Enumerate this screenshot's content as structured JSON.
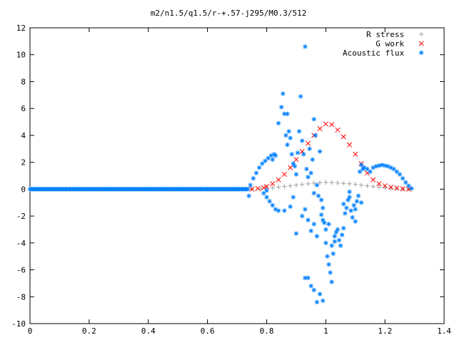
{
  "chart_data": {
    "type": "scatter",
    "title": "m2/n1.5/q1.5/r-+.57-j295/M0.3/512",
    "xlabel": "",
    "ylabel": "",
    "xlim": [
      0,
      1.4
    ],
    "ylim": [
      -10,
      12
    ],
    "x_ticks": [
      "0",
      "0.2",
      "0.4",
      "0.6",
      "0.8",
      "1",
      "1.2",
      "1.4"
    ],
    "y_ticks": [
      "-10",
      "-8",
      "-6",
      "-4",
      "-2",
      "0",
      "2",
      "4",
      "6",
      "8",
      "10",
      "12"
    ],
    "grid": false,
    "legend_position": "top-right",
    "series": [
      {
        "name": "R stress",
        "marker": "+",
        "color": "#a0a0a0",
        "points": [
          [
            0.75,
            0.0
          ],
          [
            0.78,
            0.02
          ],
          [
            0.8,
            0.05
          ],
          [
            0.82,
            0.1
          ],
          [
            0.84,
            0.15
          ],
          [
            0.86,
            0.2
          ],
          [
            0.88,
            0.25
          ],
          [
            0.9,
            0.3
          ],
          [
            0.92,
            0.35
          ],
          [
            0.94,
            0.4
          ],
          [
            0.96,
            0.45
          ],
          [
            0.98,
            0.48
          ],
          [
            1.0,
            0.5
          ],
          [
            1.02,
            0.49
          ],
          [
            1.04,
            0.46
          ],
          [
            1.06,
            0.43
          ],
          [
            1.08,
            0.4
          ],
          [
            1.1,
            0.36
          ],
          [
            1.12,
            0.3
          ],
          [
            1.14,
            0.25
          ],
          [
            1.16,
            0.2
          ],
          [
            1.18,
            0.15
          ],
          [
            1.2,
            0.1
          ],
          [
            1.22,
            0.06
          ],
          [
            1.24,
            0.03
          ],
          [
            1.26,
            0.01
          ],
          [
            1.28,
            0.0
          ]
        ]
      },
      {
        "name": "G work",
        "marker": "x",
        "color": "#ff0000",
        "points": [
          [
            0.75,
            0.0
          ],
          [
            0.77,
            0.05
          ],
          [
            0.79,
            0.1
          ],
          [
            0.8,
            0.2
          ],
          [
            0.82,
            0.4
          ],
          [
            0.84,
            0.7
          ],
          [
            0.86,
            1.1
          ],
          [
            0.88,
            1.6
          ],
          [
            0.9,
            2.2
          ],
          [
            0.92,
            2.8
          ],
          [
            0.94,
            3.4
          ],
          [
            0.96,
            4.0
          ],
          [
            0.98,
            4.5
          ],
          [
            1.0,
            4.85
          ],
          [
            1.02,
            4.8
          ],
          [
            1.04,
            4.4
          ],
          [
            1.06,
            3.9
          ],
          [
            1.08,
            3.3
          ],
          [
            1.1,
            2.6
          ],
          [
            1.12,
            1.9
          ],
          [
            1.14,
            1.2
          ],
          [
            1.16,
            0.7
          ],
          [
            1.18,
            0.4
          ],
          [
            1.2,
            0.25
          ],
          [
            1.22,
            0.15
          ],
          [
            1.24,
            0.08
          ],
          [
            1.26,
            0.03
          ],
          [
            1.28,
            0.0
          ]
        ]
      },
      {
        "name": "Acoustic flux",
        "marker": "*",
        "color": "#0080ff",
        "baseline_x": [
          0.0,
          0.74
        ],
        "baseline_y": 0.0,
        "points": [
          [
            0.74,
            -0.5
          ],
          [
            0.745,
            0.3
          ],
          [
            0.755,
            0.8
          ],
          [
            0.765,
            1.2
          ],
          [
            0.775,
            1.6
          ],
          [
            0.785,
            1.9
          ],
          [
            0.795,
            2.1
          ],
          [
            0.805,
            2.3
          ],
          [
            0.815,
            2.5
          ],
          [
            0.825,
            2.6
          ],
          [
            0.79,
            -0.3
          ],
          [
            0.8,
            -0.6
          ],
          [
            0.81,
            -0.9
          ],
          [
            0.82,
            -1.2
          ],
          [
            0.83,
            -1.5
          ],
          [
            0.84,
            -1.6
          ],
          [
            0.8,
            -0.1
          ],
          [
            0.84,
            4.9
          ],
          [
            0.85,
            6.1
          ],
          [
            0.855,
            7.1
          ],
          [
            0.86,
            5.6
          ],
          [
            0.865,
            4.0
          ],
          [
            0.87,
            5.6
          ],
          [
            0.875,
            4.3
          ],
          [
            0.88,
            3.8
          ],
          [
            0.885,
            2.6
          ],
          [
            0.89,
            1.9
          ],
          [
            0.895,
            1.7
          ],
          [
            0.9,
            1.1
          ],
          [
            0.905,
            2.7
          ],
          [
            0.91,
            4.3
          ],
          [
            0.915,
            6.9
          ],
          [
            0.92,
            3.6
          ],
          [
            0.925,
            2.6
          ],
          [
            0.93,
            10.6
          ],
          [
            0.935,
            1.5
          ],
          [
            0.94,
            0.9
          ],
          [
            0.945,
            3.0
          ],
          [
            0.95,
            1.2
          ],
          [
            0.955,
            2.2
          ],
          [
            0.96,
            5.2
          ],
          [
            0.965,
            4.0
          ],
          [
            0.97,
            0.3
          ],
          [
            0.975,
            -0.5
          ],
          [
            0.98,
            2.8
          ],
          [
            0.985,
            -1.9
          ],
          [
            0.99,
            -2.3
          ],
          [
            0.995,
            -2.5
          ],
          [
            1.0,
            -4.0
          ],
          [
            1.005,
            -5.0
          ],
          [
            1.01,
            -5.6
          ],
          [
            1.015,
            -6.2
          ],
          [
            1.02,
            -6.9
          ],
          [
            1.025,
            -4.8
          ],
          [
            1.03,
            -3.9
          ],
          [
            1.035,
            -3.2
          ],
          [
            1.04,
            -3.0
          ],
          [
            1.045,
            -3.8
          ],
          [
            1.05,
            -4.2
          ],
          [
            1.055,
            -3.4
          ],
          [
            1.06,
            -2.9
          ],
          [
            1.065,
            -1.8
          ],
          [
            1.07,
            -1.4
          ],
          [
            1.075,
            -0.8
          ],
          [
            1.08,
            -0.2
          ],
          [
            1.085,
            -1.6
          ],
          [
            1.09,
            -2.1
          ],
          [
            1.095,
            -1.2
          ],
          [
            1.1,
            -1.5
          ],
          [
            1.105,
            -0.9
          ],
          [
            1.11,
            -0.5
          ],
          [
            1.115,
            1.3
          ],
          [
            1.12,
            1.8
          ],
          [
            1.125,
            1.5
          ],
          [
            1.13,
            1.6
          ],
          [
            1.14,
            1.5
          ],
          [
            1.15,
            1.3
          ],
          [
            1.16,
            1.6
          ],
          [
            1.17,
            1.7
          ],
          [
            1.18,
            1.75
          ],
          [
            1.19,
            1.8
          ],
          [
            1.2,
            1.75
          ],
          [
            1.21,
            1.7
          ],
          [
            1.22,
            1.6
          ],
          [
            1.23,
            1.5
          ],
          [
            1.24,
            1.3
          ],
          [
            1.25,
            1.1
          ],
          [
            1.26,
            0.8
          ],
          [
            1.27,
            0.5
          ],
          [
            1.28,
            0.25
          ],
          [
            1.29,
            0.05
          ],
          [
            0.9,
            -3.3
          ],
          [
            0.93,
            -6.6
          ],
          [
            0.94,
            -6.6
          ],
          [
            0.95,
            -7.2
          ],
          [
            0.96,
            -7.5
          ],
          [
            0.97,
            -8.4
          ],
          [
            0.98,
            -7.8
          ],
          [
            0.99,
            -8.3
          ],
          [
            0.92,
            -2.0
          ],
          [
            0.93,
            -1.5
          ],
          [
            0.94,
            -2.3
          ],
          [
            0.95,
            -3.1
          ],
          [
            0.96,
            -2.6
          ],
          [
            0.97,
            -3.5
          ],
          [
            0.88,
            -1.3
          ],
          [
            0.86,
            -1.6
          ],
          [
            0.89,
            -0.6
          ],
          [
            0.87,
            3.3
          ],
          [
            0.83,
            2.5
          ],
          [
            0.82,
            2.2
          ],
          [
            1.1,
            -2.4
          ],
          [
            1.12,
            -1.0
          ],
          [
            1.08,
            -0.6
          ],
          [
            1.06,
            -1.1
          ],
          [
            1.03,
            -3.5
          ],
          [
            1.02,
            -4.2
          ],
          [
            1.0,
            -3.0
          ],
          [
            1.01,
            -2.6
          ],
          [
            0.985,
            -0.8
          ],
          [
            0.96,
            -0.3
          ],
          [
            0.99,
            -1.4
          ]
        ]
      }
    ]
  }
}
